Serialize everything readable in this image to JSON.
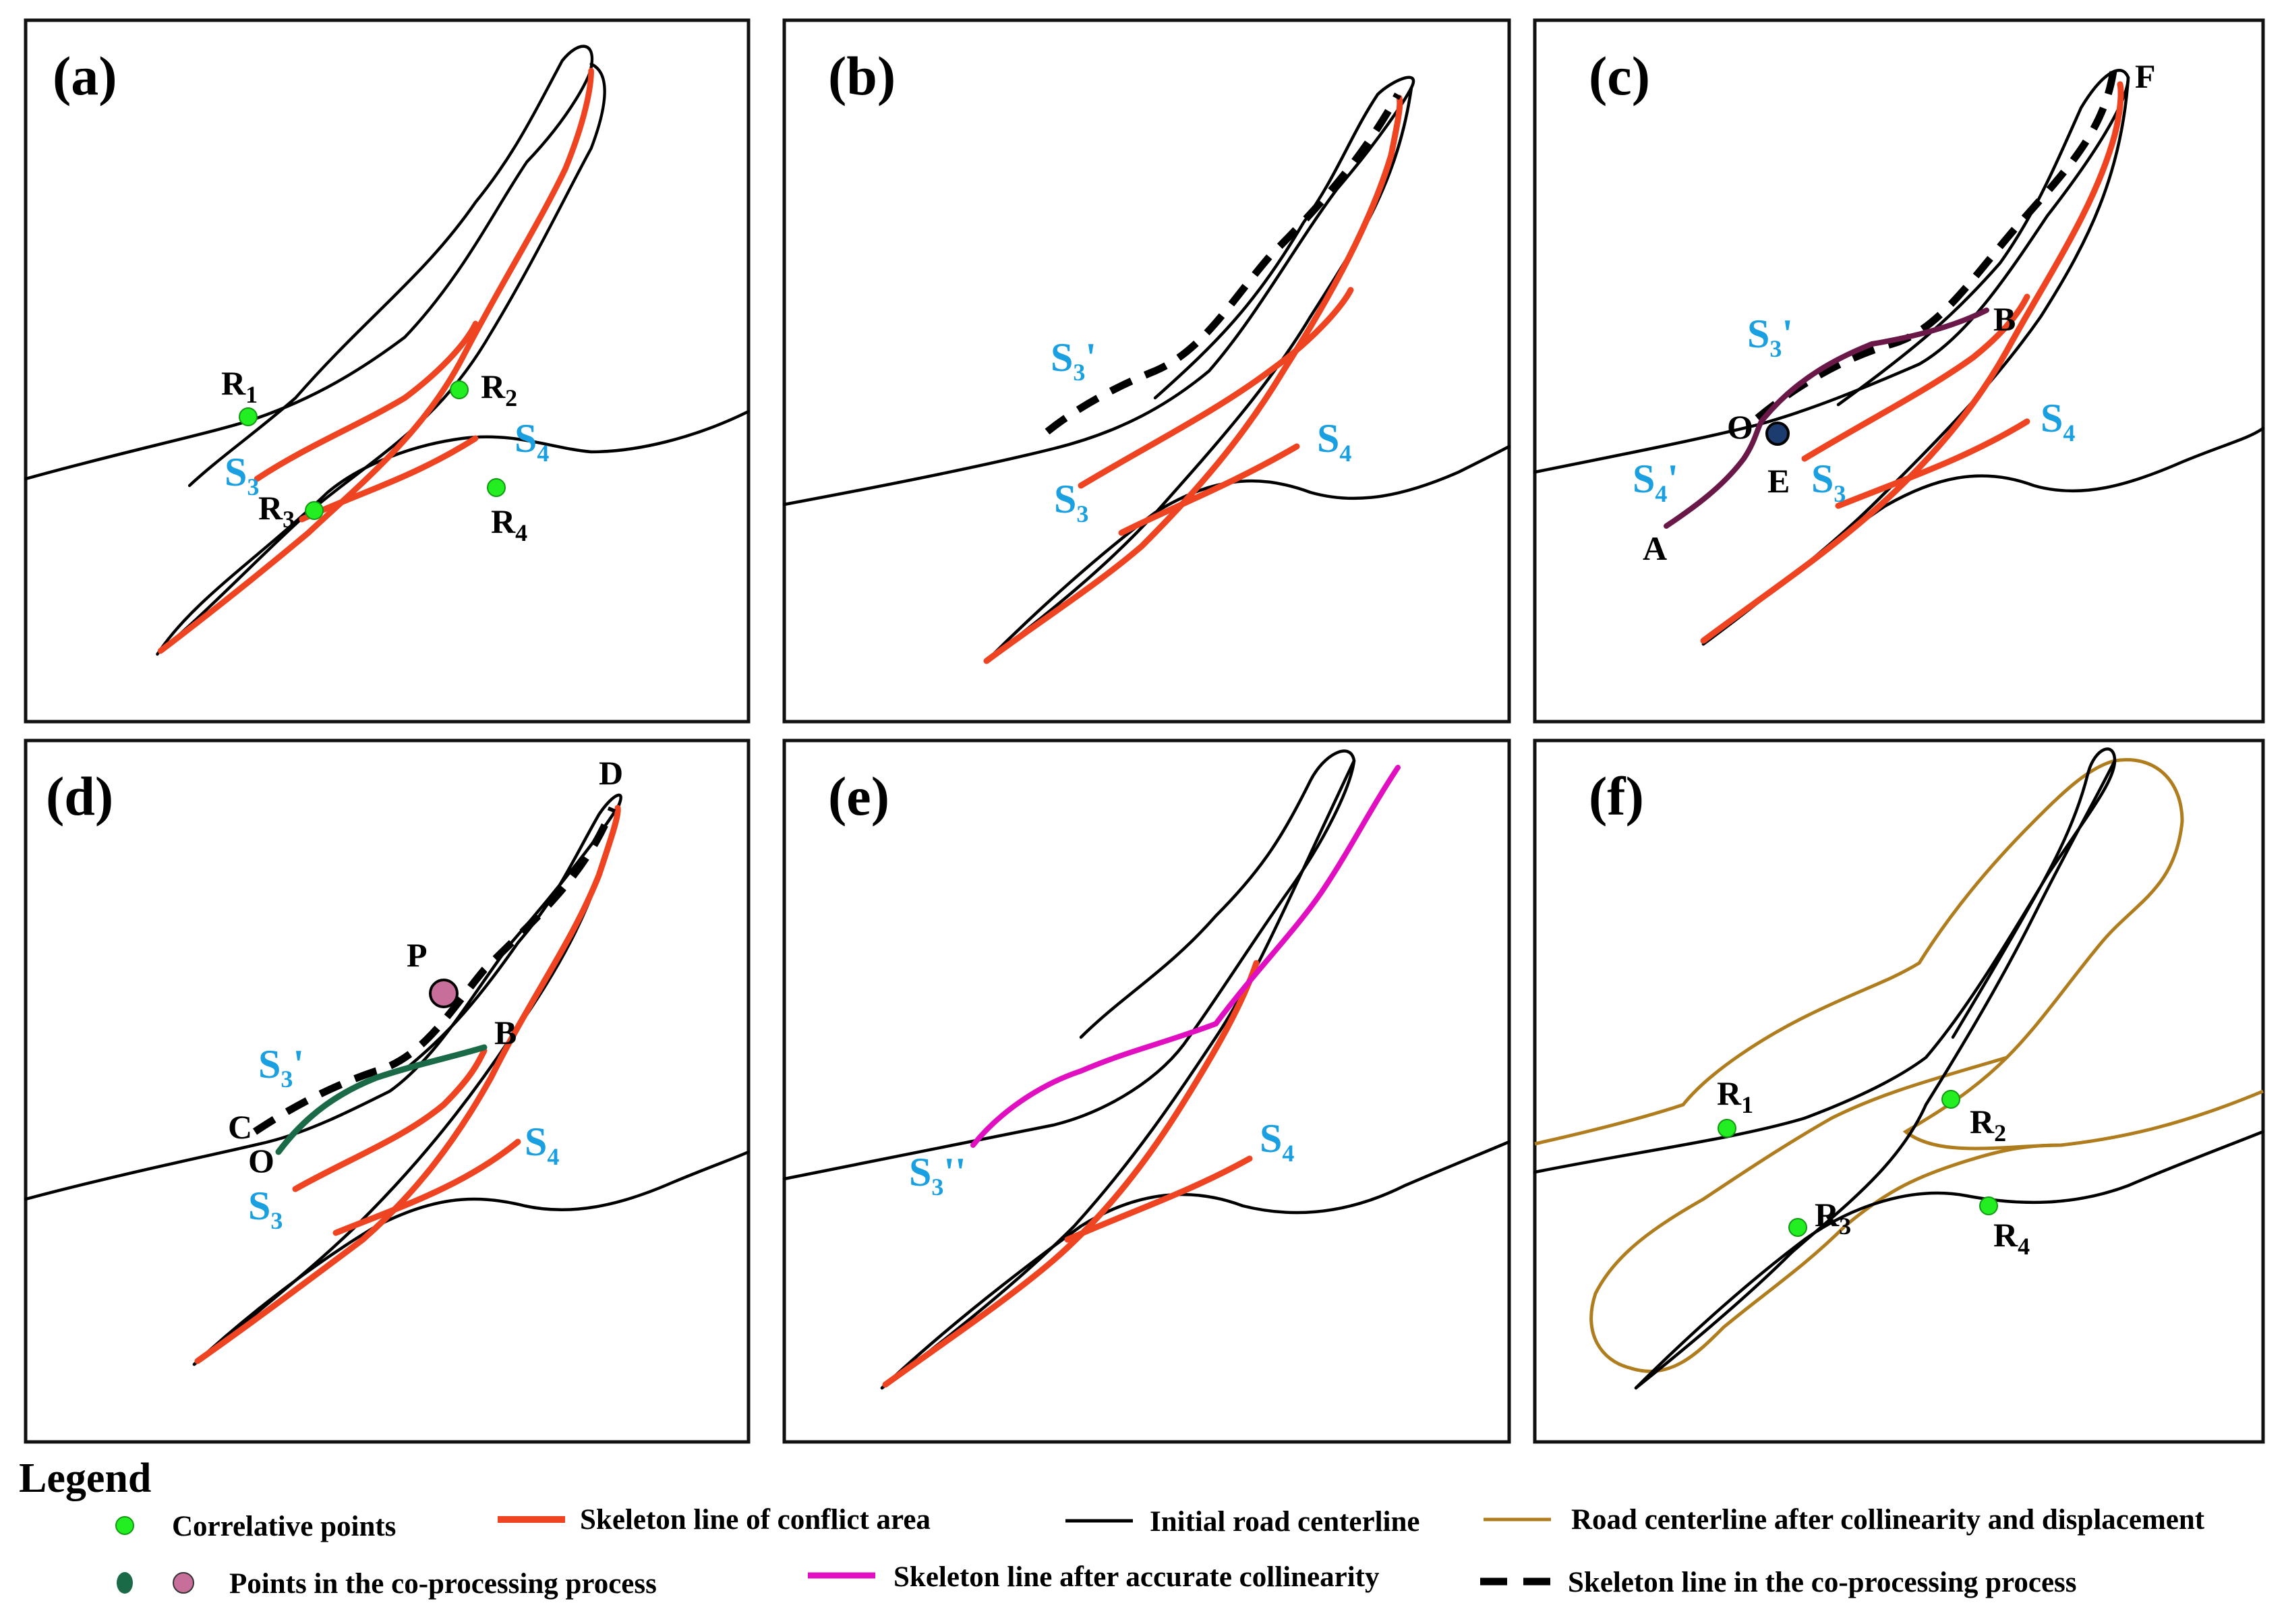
{
  "colors": {
    "correlative_point": "#22ee22",
    "skeleton_conflict": "#ee4422",
    "initial_centerline": "#000000",
    "displaced_centerline": "#b07d1e",
    "accurate_skeleton": "#e010c0",
    "point_O": "#1c3b6e",
    "point_P": "#c86e9a",
    "curve_c": "#6a1848",
    "curve_d": "#1a6a48",
    "label_blue": "#1aa0e0"
  },
  "panels": {
    "a": {
      "label": "(a)",
      "points": {
        "R1": "R",
        "R2": "R",
        "R3": "R",
        "R4": "R"
      }
    },
    "b": {
      "label": "(b)"
    },
    "c": {
      "label": "(c)"
    },
    "d": {
      "label": "(d)"
    },
    "e": {
      "label": "(e)"
    },
    "f": {
      "label": "(f)"
    }
  },
  "labels": {
    "S": "S",
    "sub3": "3",
    "sub4": "4",
    "prime": "'",
    "dprime": "''",
    "R": "R",
    "sub1": "1",
    "sub2": "2",
    "O": "O",
    "A": "A",
    "B": "B",
    "E": "E",
    "F": "F",
    "C": "C",
    "D": "D",
    "P": "P"
  },
  "legend": {
    "title": "Legend",
    "items": [
      {
        "key": "correlative",
        "text": "Correlative points"
      },
      {
        "key": "skeleton_conflict",
        "text": "Skeleton line of conflict area"
      },
      {
        "key": "initial",
        "text": "Initial road centerline"
      },
      {
        "key": "displaced",
        "text": "Road centerline after collinearity and displacement"
      },
      {
        "key": "coprocess_points",
        "text": "Points in the co-processing process"
      },
      {
        "key": "accurate",
        "text": "Skeleton line after accurate collinearity"
      },
      {
        "key": "coprocess_line",
        "text": "Skeleton line  in the co-processing process"
      }
    ]
  }
}
